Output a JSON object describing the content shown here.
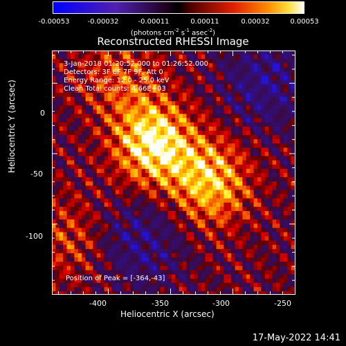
{
  "colorbar": {
    "ticks": [
      "-0.00053",
      "-0.00032",
      "-0.00011",
      "0.00011",
      "0.00032",
      "0.00053"
    ],
    "units_main": "(photons cm",
    "units_sup1": "-2",
    "units_mid1": " s",
    "units_sup2": "-1",
    "units_mid2": " asec",
    "units_sup3": "-2",
    "units_end": ")"
  },
  "chart_data": {
    "type": "heatmap",
    "title": "Reconstructed RHESSI Image",
    "xlabel": "Heliocentric X (arcsec)",
    "ylabel": "Heliocentric Y (arcsec)",
    "xlim": [
      -445,
      -250
    ],
    "ylim": [
      -150,
      23
    ],
    "xticks": [
      -400,
      -350,
      -300,
      -250
    ],
    "yticks": [
      0,
      -50,
      -100
    ],
    "value_range": [
      -0.00053,
      0.00053
    ],
    "colormap": "RHESSI bipolar (blue-purple negative, red-yellow-white positive)",
    "sources": [
      {
        "x": -364,
        "y": -43,
        "peak": 0.00053
      },
      {
        "x": -318,
        "y": -70,
        "peak": 0.00042
      },
      {
        "x": -392,
        "y": 5,
        "peak": 0.0002
      },
      {
        "x": -430,
        "y": -110,
        "peak": 0.00018
      }
    ],
    "negative_regions": [
      {
        "x": -375,
        "y": -112
      },
      {
        "x": -275,
        "y": 0
      }
    ],
    "annotations": {
      "time": "3-Jan-2018 01:20:52.000 to 01:26:52.000",
      "detectors": "Detectors: 3F 6F 7F 9F, Att 0",
      "energy": "Energy Range: 12.0 - 25.0 keV",
      "clean": "Clean    Total counts: 4.66E+03",
      "peak": "Position of Peak = [-364,-43]"
    }
  },
  "footer": {
    "timestamp": "17-May-2022 14:41"
  }
}
